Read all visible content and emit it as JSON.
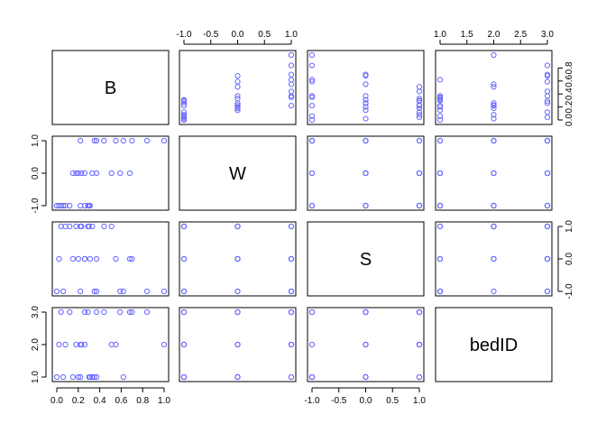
{
  "chart_data": {
    "type": "scatter",
    "subtype": "pairs-matrix",
    "point_color": "#6666ff",
    "variables": [
      {
        "name": "B",
        "ticks": [
          0,
          0.2,
          0.4,
          0.6,
          0.8,
          1
        ],
        "tick_labels": [
          "0.0",
          "0.2",
          "0.4",
          "0.6",
          "0.8",
          "1.0"
        ],
        "range": [
          0,
          1
        ]
      },
      {
        "name": "W",
        "ticks": [
          -1,
          -0.5,
          0,
          0.5,
          1
        ],
        "tick_labels": [
          "-1.0",
          "-0.5",
          "0.0",
          "0.5",
          "1.0"
        ],
        "range": [
          -1,
          1
        ]
      },
      {
        "name": "S",
        "ticks": [
          -1,
          -0.5,
          0,
          0.5,
          1
        ],
        "tick_labels": [
          "-1.0",
          "-0.5",
          "0.0",
          "0.5",
          "1.0"
        ],
        "range": [
          -1,
          1
        ]
      },
      {
        "name": "bedID",
        "ticks": [
          1,
          1.5,
          2,
          2.5,
          3
        ],
        "tick_labels": [
          "1.0",
          "1.5",
          "2.0",
          "2.5",
          "3.0"
        ],
        "range": [
          1,
          3
        ]
      }
    ],
    "axis_tick_layout": {
      "top": [
        1,
        3
      ],
      "right": [
        0,
        2
      ],
      "left": [
        1,
        3
      ],
      "bottom": [
        0,
        2
      ]
    },
    "left_tick_subset": {
      "1": [
        -1,
        0,
        1
      ],
      "3": [
        1,
        2,
        3
      ]
    },
    "right_tick_subset": {
      "0": [
        0,
        0.2,
        0.4,
        0.6,
        0.8
      ],
      "2": [
        -1,
        0,
        1
      ]
    },
    "bottom_tick_subset": {
      "0": [
        0,
        0.2,
        0.4,
        0.6,
        0.8,
        1
      ],
      "2": [
        -1,
        -0.5,
        0,
        0.5,
        1
      ]
    },
    "top_tick_subset": {
      "1": [
        -1,
        -0.5,
        0,
        0.5,
        1
      ],
      "3": [
        1,
        1.5,
        2,
        2.5,
        3
      ]
    },
    "observations": [
      {
        "B": 0.0,
        "W": -1,
        "S": -1,
        "bedID": 1
      },
      {
        "B": 0.02,
        "W": -1,
        "S": 0,
        "bedID": 2
      },
      {
        "B": 0.04,
        "W": -1,
        "S": 1,
        "bedID": 3
      },
      {
        "B": 0.06,
        "W": -1,
        "S": -1,
        "bedID": 1
      },
      {
        "B": 0.08,
        "W": -1,
        "S": 1,
        "bedID": 2
      },
      {
        "B": 0.12,
        "W": -1,
        "S": 1,
        "bedID": 3
      },
      {
        "B": 0.22,
        "W": -1,
        "S": -1,
        "bedID": 1
      },
      {
        "B": 0.26,
        "W": -1,
        "S": 0,
        "bedID": 2
      },
      {
        "B": 0.29,
        "W": -1,
        "S": 1,
        "bedID": 3
      },
      {
        "B": 0.31,
        "W": -1,
        "S": 0,
        "bedID": 1
      },
      {
        "B": 0.15,
        "W": 0,
        "S": 0,
        "bedID": 1
      },
      {
        "B": 0.18,
        "W": 0,
        "S": 1,
        "bedID": 2
      },
      {
        "B": 0.2,
        "W": 0,
        "S": 0,
        "bedID": 1
      },
      {
        "B": 0.23,
        "W": 0,
        "S": 1,
        "bedID": 2
      },
      {
        "B": 0.26,
        "W": 0,
        "S": 0,
        "bedID": 3
      },
      {
        "B": 0.33,
        "W": 0,
        "S": 1,
        "bedID": 1
      },
      {
        "B": 0.37,
        "W": 0,
        "S": -1,
        "bedID": 1
      },
      {
        "B": 0.51,
        "W": 0,
        "S": 1,
        "bedID": 2
      },
      {
        "B": 0.59,
        "W": 0,
        "S": -1,
        "bedID": 3
      },
      {
        "B": 0.68,
        "W": 0,
        "S": 0,
        "bedID": 3
      },
      {
        "B": 0.22,
        "W": 1,
        "S": 1,
        "bedID": 2
      },
      {
        "B": 0.35,
        "W": 1,
        "S": -1,
        "bedID": 1
      },
      {
        "B": 0.37,
        "W": 1,
        "S": 0,
        "bedID": 3
      },
      {
        "B": 0.55,
        "W": 1,
        "S": 0,
        "bedID": 2
      },
      {
        "B": 0.62,
        "W": 1,
        "S": -1,
        "bedID": 1
      },
      {
        "B": 0.7,
        "W": 1,
        "S": 0,
        "bedID": 3
      },
      {
        "B": 0.84,
        "W": 1,
        "S": -1,
        "bedID": 3
      },
      {
        "B": 1.0,
        "W": 1,
        "S": -1,
        "bedID": 2
      },
      {
        "B": 0.44,
        "W": 1,
        "S": 1,
        "bedID": 3
      },
      {
        "B": 0.3,
        "W": -1,
        "S": 1,
        "bedID": 1
      }
    ]
  }
}
